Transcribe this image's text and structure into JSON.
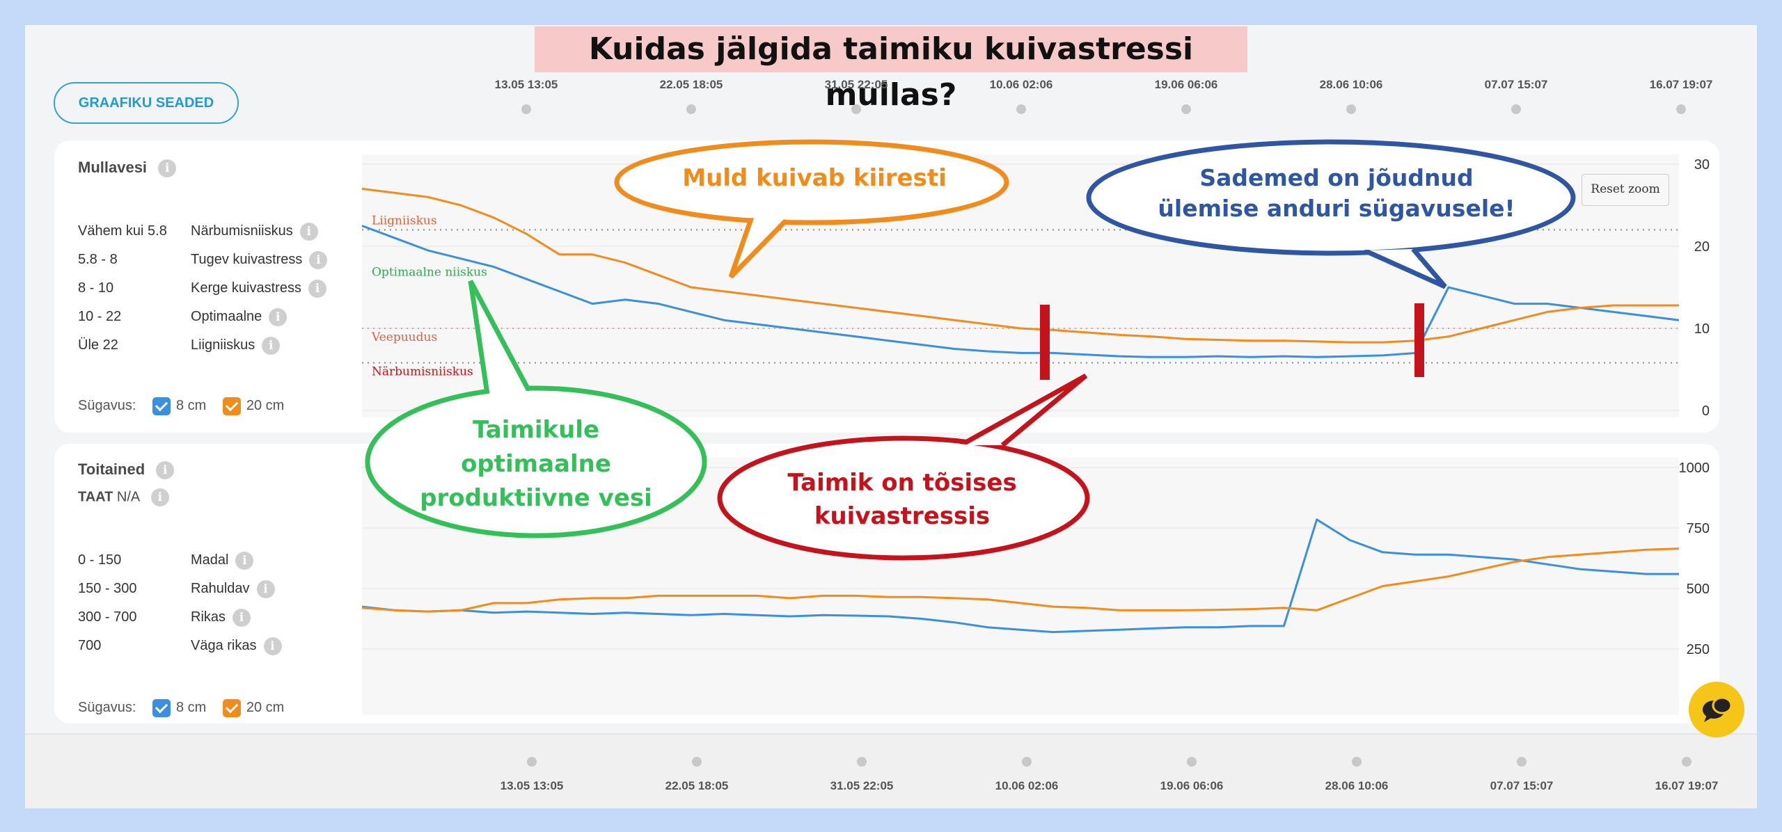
{
  "title": "Kuidas jälgida taimiku kuivastressi mullas?",
  "settings_button": "GRAAFIKU SEADED",
  "timeline_top": [
    "13.05 13:05",
    "22.05 18:05",
    "31.05 22:05",
    "10.06 02:06",
    "19.06 06:06",
    "28.06 10:06",
    "07.07 15:07",
    "16.07 19:07"
  ],
  "timeline_bottom": [
    "13.05 13:05",
    "22.05 18:05",
    "31.05 22:05",
    "10.06 02:06",
    "19.06 06:06",
    "28.06 10:06",
    "07.07 15:07",
    "16.07 19:07"
  ],
  "reset_zoom": "Reset zoom",
  "depth_label": "Sügavus:",
  "depth_8": "8 cm",
  "depth_20": "20 cm",
  "colors": {
    "blue": "#3a8fde",
    "orange": "#f08c1c",
    "red": "#c4131a",
    "green": "#34c059",
    "dark_blue": "#2f56a3"
  },
  "soil_water": {
    "title": "Mullavesi",
    "legend": [
      {
        "range": "Vähem kui 5.8",
        "name": "Närbumisniiskus"
      },
      {
        "range": "5.8 - 8",
        "name": "Tugev kuivastress"
      },
      {
        "range": "8 - 10",
        "name": "Kerge kuivastress"
      },
      {
        "range": "10 - 22",
        "name": "Optimaalne"
      },
      {
        "range": "Üle 22",
        "name": "Liigniiskus"
      }
    ]
  },
  "nutrients": {
    "title": "Toitained",
    "taat_label": "TAAT",
    "taat_value": "N/A",
    "legend": [
      {
        "range": "0 - 150",
        "name": "Madal"
      },
      {
        "range": "150 - 300",
        "name": "Rahuldav"
      },
      {
        "range": "300 - 700",
        "name": "Rikas"
      },
      {
        "range": "700",
        "name": "Väga rikas"
      }
    ]
  },
  "annotations": {
    "fast_drying": "Muld kuivab kiiresti",
    "rain_reached_line1": "Sademed on jõudnud",
    "rain_reached_line2": "ülemise anduri sügavusele!",
    "optimal_line1": "Taimikule",
    "optimal_line2": "optimaalne",
    "optimal_line3": "produktiivne vesi",
    "stress_line1": "Taimik on tõsises",
    "stress_line2": "kuivastressis"
  },
  "chart_data": [
    {
      "type": "line",
      "title": "Mullavesi",
      "ylim": [
        0,
        30
      ],
      "yticks": [
        0,
        10,
        20,
        30
      ],
      "grid": true,
      "thresholds": [
        {
          "label": "Liigniiskus",
          "value": 22
        },
        {
          "label": "Optimaalne niiskus",
          "value": 22
        },
        {
          "label": "Veepuudus",
          "value": 10
        },
        {
          "label": "Närbumisniiskus",
          "value": 5.8
        }
      ],
      "series": [
        {
          "name": "8 cm",
          "values": [
            22.5,
            21,
            19.5,
            18.5,
            17.5,
            16,
            14.5,
            13,
            13.5,
            13,
            12,
            11,
            10.5,
            10,
            9.5,
            9,
            8.5,
            8,
            7.5,
            7.2,
            7,
            7,
            6.8,
            6.6,
            6.5,
            6.5,
            6.6,
            6.5,
            6.6,
            6.5,
            6.6,
            6.7,
            7,
            15,
            14,
            13,
            13,
            12.5,
            12,
            11.5,
            11
          ]
        },
        {
          "name": "20 cm",
          "values": [
            27,
            26.5,
            26,
            25,
            23.5,
            21.5,
            19,
            19,
            18,
            16.5,
            15,
            14.5,
            14,
            13.5,
            13,
            12.5,
            12,
            11.5,
            11,
            10.5,
            10,
            9.8,
            9.5,
            9.2,
            9,
            8.7,
            8.6,
            8.5,
            8.5,
            8.4,
            8.3,
            8.3,
            8.5,
            9,
            10,
            11,
            12,
            12.5,
            12.8,
            12.8,
            12.8
          ]
        }
      ]
    },
    {
      "type": "line",
      "title": "Toitained",
      "ylim": [
        0,
        1000
      ],
      "yticks": [
        250,
        500,
        750,
        1000
      ],
      "grid": true,
      "series": [
        {
          "name": "8 cm",
          "values": [
            425,
            410,
            405,
            410,
            400,
            405,
            400,
            395,
            400,
            395,
            390,
            395,
            390,
            385,
            390,
            388,
            385,
            375,
            360,
            340,
            330,
            320,
            325,
            330,
            335,
            340,
            340,
            345,
            345,
            785,
            700,
            650,
            640,
            640,
            630,
            620,
            600,
            580,
            570,
            560,
            560
          ]
        },
        {
          "name": "20 cm",
          "values": [
            420,
            410,
            405,
            410,
            440,
            440,
            455,
            460,
            460,
            470,
            470,
            470,
            470,
            460,
            470,
            470,
            465,
            465,
            460,
            455,
            440,
            425,
            420,
            410,
            410,
            410,
            412,
            415,
            420,
            410,
            460,
            510,
            530,
            550,
            580,
            610,
            630,
            640,
            650,
            660,
            665
          ]
        }
      ]
    }
  ]
}
